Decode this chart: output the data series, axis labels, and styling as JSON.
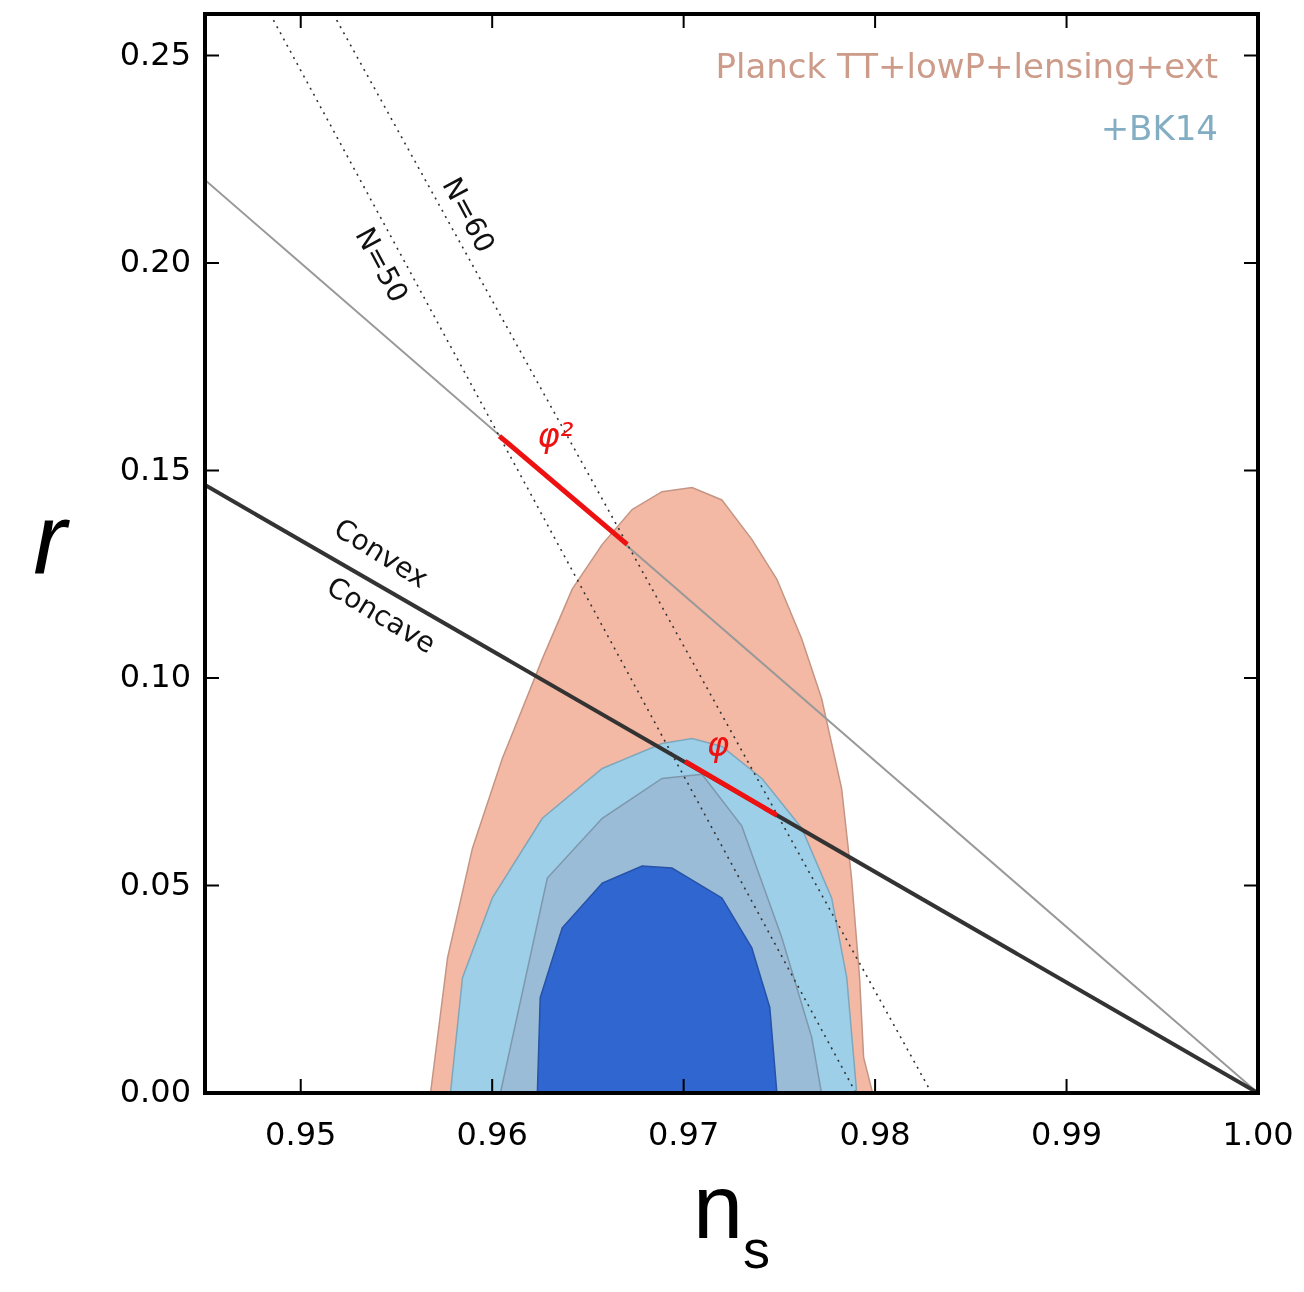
{
  "chart_data": {
    "type": "line",
    "xlabel": "n$_{s}$",
    "ylabel": "r",
    "xlim": [
      0.945,
      1.0
    ],
    "ylim": [
      0,
      0.26
    ],
    "xticks": [
      0.95,
      0.96,
      0.97,
      0.98,
      0.99,
      {
        "value": 1,
        "label": "1.00"
      }
    ],
    "yticks": [
      {
        "value": 0,
        "label": "0.00"
      },
      0.05,
      {
        "value": 0.1,
        "label": "0.10"
      },
      0.15,
      {
        "value": 0.2,
        "label": "0.20"
      },
      0.25
    ],
    "grid": false,
    "legend": "top right",
    "marker": "none",
    "series": [
      {
        "type": "area",
        "name": "Planck TT+lowP+lensing+ext",
        "color": "#f4b9a4",
        "x": [
          0.95678,
          0.95767,
          0.95897,
          0.96053,
          0.96262,
          0.96418,
          0.96575,
          0.96731,
          0.96887,
          0.97044,
          0.972,
          0.97356,
          0.97487,
          0.97617,
          0.97721,
          0.97825,
          0.97877,
          0.97919,
          0.9794,
          0.97987
        ],
        "values": [
          0,
          0.0326,
          0.059,
          0.0806,
          0.1046,
          0.1214,
          0.1322,
          0.1406,
          0.1449,
          0.1459,
          0.1429,
          0.1334,
          0.1238,
          0.1094,
          0.095,
          0.0734,
          0.0518,
          0.0278,
          0.0086,
          0
        ]
      },
      {
        "type": "area",
        "name": "+BK14",
        "color": "#9dcfe8",
        "x": [
          0.95782,
          0.95845,
          0.96001,
          0.96262,
          0.96575,
          0.96887,
          0.97044,
          0.972,
          0.97409,
          0.97617,
          0.97773,
          0.97852,
          0.97888,
          0.97904
        ],
        "values": [
          0,
          0.0278,
          0.047,
          0.0662,
          0.0782,
          0.0842,
          0.0854,
          0.0835,
          0.0758,
          0.0638,
          0.047,
          0.0278,
          0.0086,
          0
        ]
      },
      {
        "type": "area",
        "color": "#9bbcd6",
        "x": [
          0.96043,
          0.96288,
          0.96575,
          0.96887,
          0.97096,
          0.97304,
          0.97513,
          0.97669,
          0.9772
        ],
        "values": [
          0,
          0.0518,
          0.0662,
          0.0758,
          0.0768,
          0.0643,
          0.0374,
          0.0134,
          0
        ]
      },
      {
        "type": "area",
        "color": "#2f66d0",
        "x": [
          0.96236,
          0.96251,
          0.96366,
          0.96575,
          0.96783,
          0.96939,
          0.972,
          0.97356,
          0.9745,
          0.97487
        ],
        "values": [
          0,
          0.023,
          0.0398,
          0.0506,
          0.0547,
          0.0542,
          0.047,
          0.035,
          0.0206,
          0
        ]
      },
      {
        "color": "#999999",
        "x": [
          0.945,
          1.0
        ],
        "values": [
          0.22,
          0
        ]
      },
      {
        "color": "#333333",
        "x": [
          0.945,
          1.0
        ],
        "values": [
          0.1465,
          0
        ]
      },
      {
        "type": "line",
        "color": "#333333",
        "line_style": "dotted",
        "x": [
          0.9484,
          0.979
        ],
        "values": [
          0.26,
          0
        ]
      },
      {
        "type": "line",
        "color": "#333333",
        "line_style": "dotted",
        "x": [
          0.9517,
          0.98295
        ],
        "values": [
          0.26,
          0
        ]
      },
      {
        "type": "line",
        "color": "#ee1111",
        "x": [
          0.96038,
          0.96705
        ],
        "values": [
          0.1583,
          0.1322
        ]
      },
      {
        "type": "line",
        "color": "#ee1111",
        "x": [
          0.97008,
          0.97488
        ],
        "values": [
          0.0799,
          0.0669
        ]
      }
    ],
    "annotations": [
      "N=60",
      "N=50",
      "φ²",
      "φ",
      "Convex",
      "Concave"
    ]
  }
}
